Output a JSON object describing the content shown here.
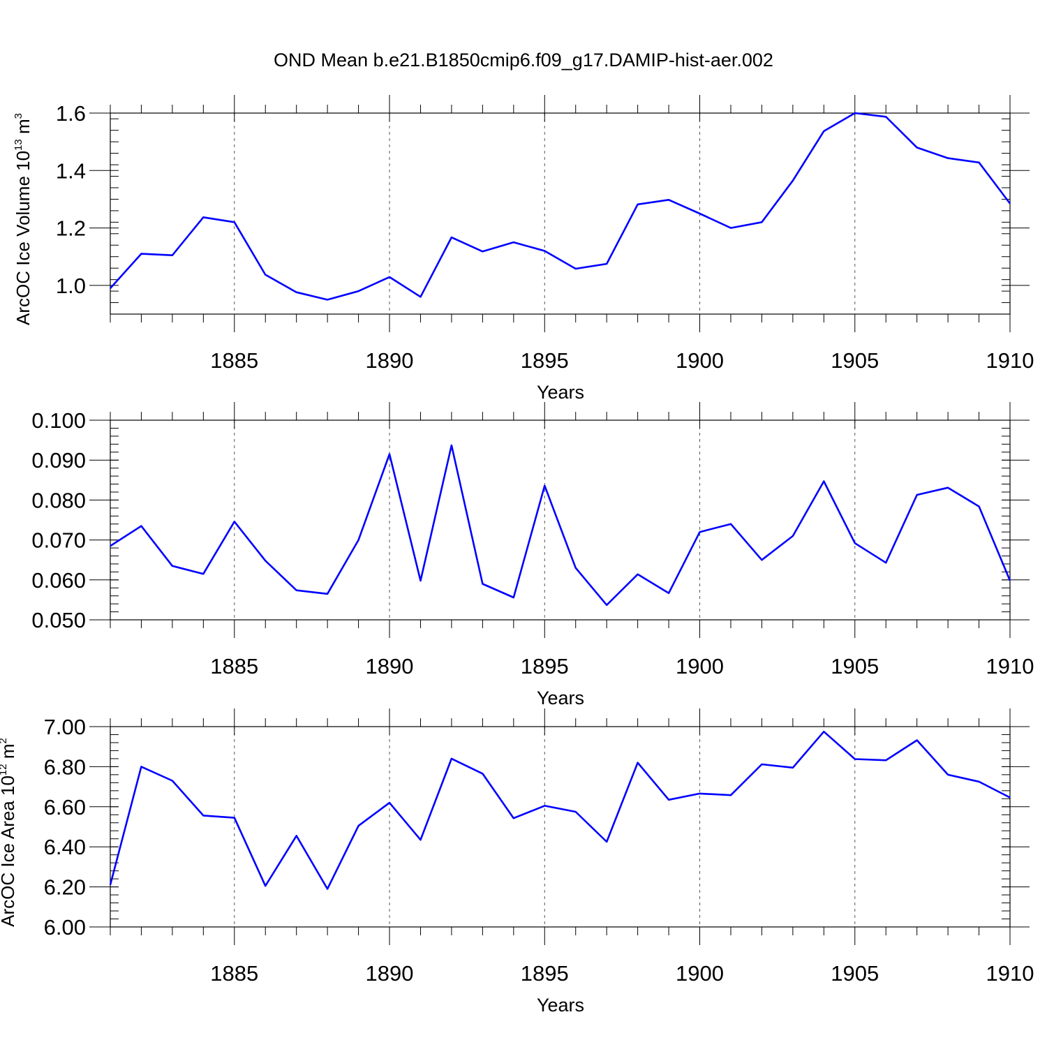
{
  "chart_data": {
    "title": "OND Mean b.e21.B1850cmip6.f09_g17.DAMIP-hist-aer.002",
    "type": "line",
    "series_color": "#0000ff",
    "panels": [
      {
        "type": "line",
        "ylabel": "ArcOC Ice Volume 10",
        "ylabel_exponent": "13",
        "ylabel_unit": " m",
        "ylabel_unit_exponent": "3",
        "xlabel": "Years",
        "xlim": [
          1881,
          1910
        ],
        "ylim": [
          0.9,
          1.6
        ],
        "yticks": [
          "1.0",
          "1.2",
          "1.4",
          "1.6"
        ],
        "xticks": [
          "1885",
          "1890",
          "1895",
          "1900",
          "1905",
          "1910"
        ],
        "x": [
          1881,
          1882,
          1883,
          1884,
          1885,
          1886,
          1887,
          1888,
          1889,
          1890,
          1891,
          1892,
          1893,
          1894,
          1895,
          1896,
          1897,
          1898,
          1899,
          1900,
          1901,
          1902,
          1903,
          1904,
          1905,
          1906,
          1907,
          1908,
          1909,
          1910
        ],
        "values": [
          0.99,
          1.11,
          1.105,
          1.237,
          1.22,
          1.037,
          0.976,
          0.95,
          0.98,
          1.029,
          0.96,
          1.167,
          1.118,
          1.15,
          1.12,
          1.058,
          1.075,
          1.282,
          1.298,
          1.25,
          1.2,
          1.22,
          1.365,
          1.537,
          1.6,
          1.587,
          1.48,
          1.443,
          1.428,
          1.285
        ]
      },
      {
        "type": "line",
        "ylabel": "",
        "xlabel": "Years",
        "xlim": [
          1881,
          1910
        ],
        "ylim": [
          0.05,
          0.1
        ],
        "yticks": [
          "0.050",
          "0.060",
          "0.070",
          "0.080",
          "0.090",
          "0.100"
        ],
        "xticks": [
          "1885",
          "1890",
          "1895",
          "1900",
          "1905",
          "1910"
        ],
        "x": [
          1881,
          1882,
          1883,
          1884,
          1885,
          1886,
          1887,
          1888,
          1889,
          1890,
          1891,
          1892,
          1893,
          1894,
          1895,
          1896,
          1897,
          1898,
          1899,
          1900,
          1901,
          1902,
          1903,
          1904,
          1905,
          1906,
          1907,
          1908,
          1909,
          1910
        ],
        "values": [
          0.0685,
          0.0735,
          0.0635,
          0.0615,
          0.0746,
          0.0648,
          0.0574,
          0.0565,
          0.07,
          0.0915,
          0.0598,
          0.0937,
          0.059,
          0.0556,
          0.0836,
          0.063,
          0.0537,
          0.0614,
          0.0567,
          0.072,
          0.074,
          0.065,
          0.071,
          0.0847,
          0.0692,
          0.0643,
          0.0813,
          0.0831,
          0.0784,
          0.0598
        ]
      },
      {
        "type": "line",
        "ylabel": "ArcOC Ice Area 10",
        "ylabel_exponent": "12",
        "ylabel_unit": " m",
        "ylabel_unit_exponent": "2",
        "xlabel": "Years",
        "xlim": [
          1881,
          1910
        ],
        "ylim": [
          6.0,
          7.0
        ],
        "yticks": [
          "6.00",
          "6.20",
          "6.40",
          "6.60",
          "6.80",
          "7.00"
        ],
        "xticks": [
          "1885",
          "1890",
          "1895",
          "1900",
          "1905",
          "1910"
        ],
        "x": [
          1881,
          1882,
          1883,
          1884,
          1885,
          1886,
          1887,
          1888,
          1889,
          1890,
          1891,
          1892,
          1893,
          1894,
          1895,
          1896,
          1897,
          1898,
          1899,
          1900,
          1901,
          1902,
          1903,
          1904,
          1905,
          1906,
          1907,
          1908,
          1909,
          1910
        ],
        "values": [
          6.21,
          6.8,
          6.73,
          6.556,
          6.545,
          6.205,
          6.455,
          6.19,
          6.505,
          6.62,
          6.435,
          6.84,
          6.765,
          6.543,
          6.605,
          6.575,
          6.425,
          6.82,
          6.635,
          6.666,
          6.658,
          6.812,
          6.795,
          6.975,
          6.838,
          6.832,
          6.932,
          6.76,
          6.725,
          6.646
        ]
      }
    ]
  }
}
